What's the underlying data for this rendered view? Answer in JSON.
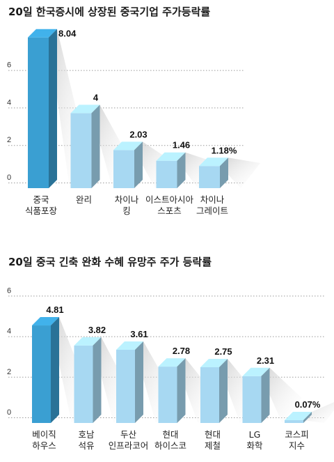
{
  "chart_data": [
    {
      "type": "bar",
      "title": "20일 한국증시에 상장된 중국기업 주가등락률",
      "categories": [
        [
          "중국",
          "식품포장"
        ],
        [
          "완리"
        ],
        [
          "차이나",
          "킹"
        ],
        [
          "이스트아시아",
          "스포츠"
        ],
        [
          "차이나",
          "그레이트"
        ]
      ],
      "values": [
        8.04,
        4,
        2.03,
        1.46,
        1.18
      ],
      "value_labels": [
        "8.04",
        "4",
        "2.03",
        "1.46",
        "1.18%"
      ],
      "highlight_index": 0,
      "yticks": [
        "0",
        "2",
        "4",
        "6"
      ],
      "ylim": [
        0,
        8.04
      ],
      "grid": true,
      "colors": {
        "highlight": "#3a9fd2",
        "normal": "#a7d8f2"
      }
    },
    {
      "type": "bar",
      "title": "20일 중국 긴축 완화 수혜 유망주 주가 등락률",
      "categories": [
        [
          "베이직",
          "하우스"
        ],
        [
          "호남",
          "석유"
        ],
        [
          "두산",
          "인프라코어"
        ],
        [
          "현대",
          "하이스코"
        ],
        [
          "현대",
          "제철"
        ],
        [
          "LG",
          "화학"
        ],
        [
          "코스피",
          "지수"
        ]
      ],
      "values": [
        4.81,
        3.82,
        3.61,
        2.78,
        2.75,
        2.31,
        0.07
      ],
      "value_labels": [
        "4.81",
        "3.82",
        "3.61",
        "2.78",
        "2.75",
        "2.31",
        "0.07%"
      ],
      "highlight_index": 0,
      "yticks": [
        "0",
        "2",
        "4",
        "6"
      ],
      "ylim": [
        0,
        6
      ],
      "grid": true,
      "colors": {
        "highlight": "#3a9fd2",
        "normal": "#a7d8f2"
      }
    }
  ]
}
